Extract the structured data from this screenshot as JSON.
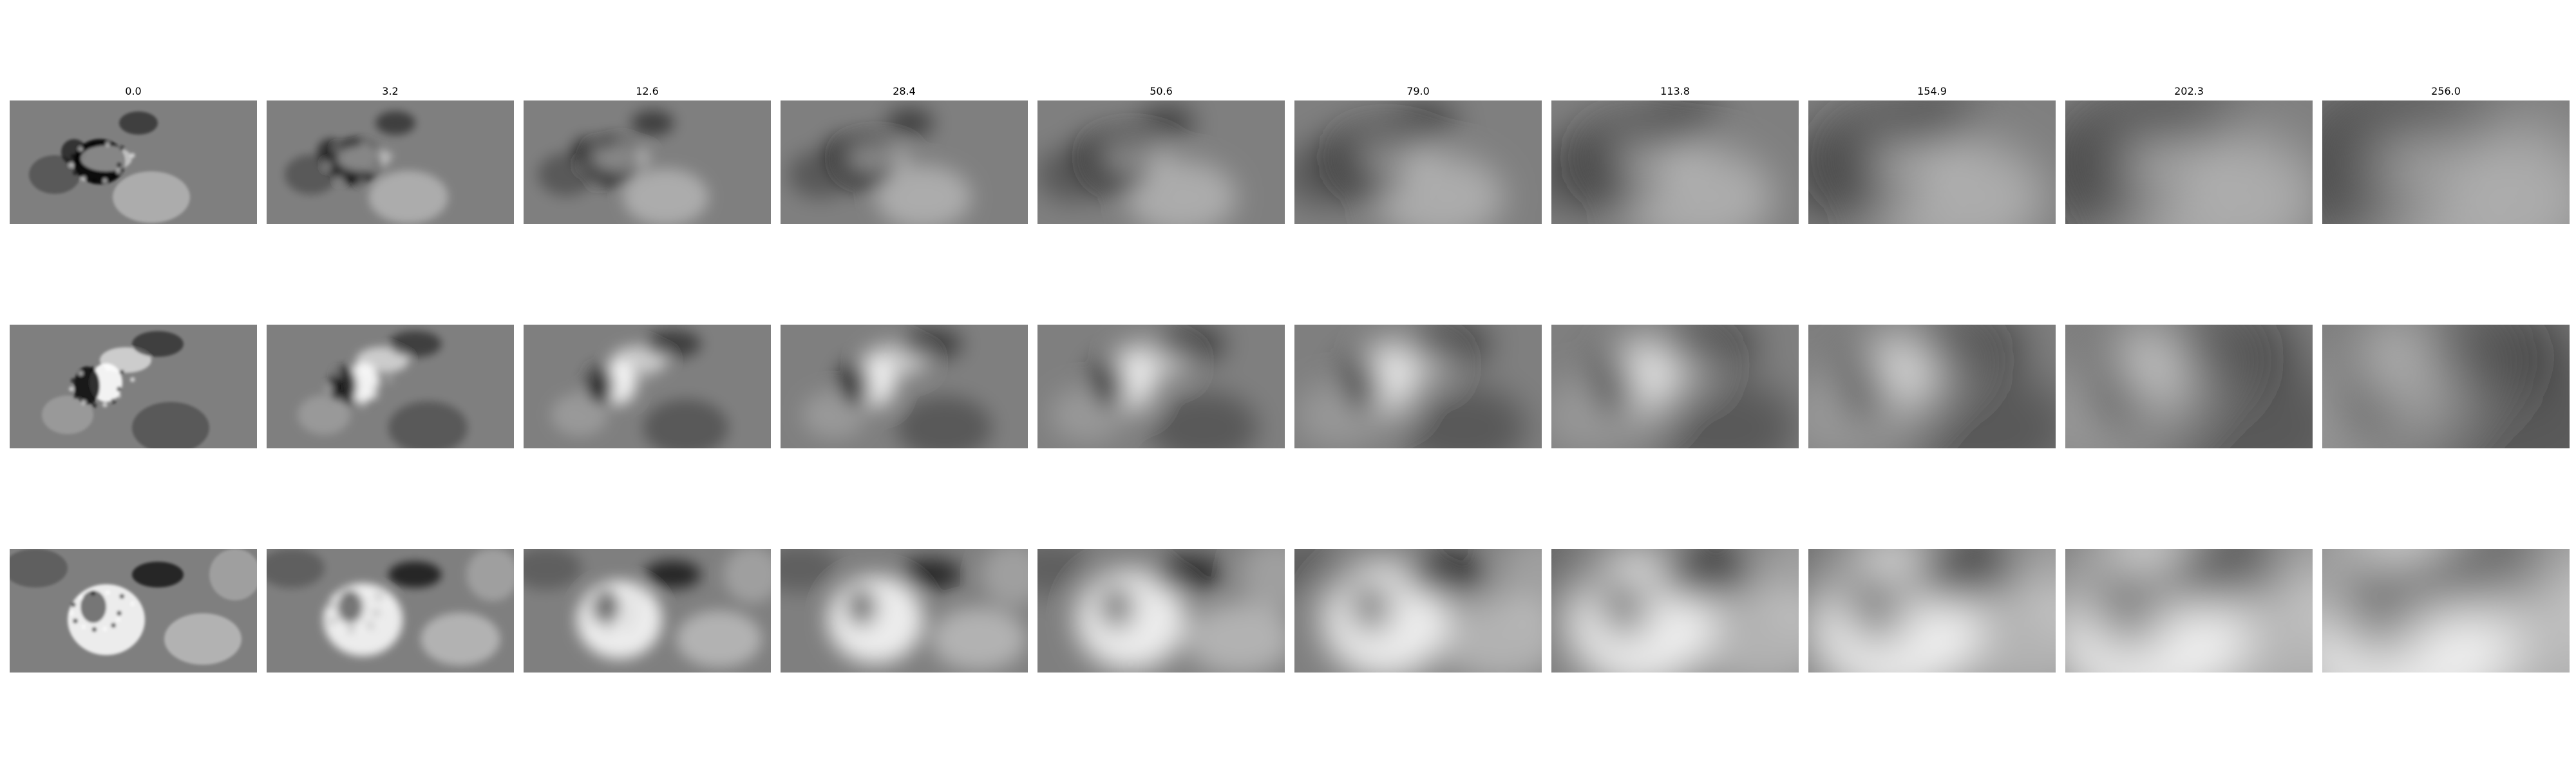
{
  "figure": {
    "columns": [
      {
        "title": "0.0",
        "sigma": 0.0
      },
      {
        "title": "3.2",
        "sigma": 3.2
      },
      {
        "title": "12.6",
        "sigma": 12.6
      },
      {
        "title": "28.4",
        "sigma": 28.4
      },
      {
        "title": "50.6",
        "sigma": 50.6
      },
      {
        "title": "79.0",
        "sigma": 79.0
      },
      {
        "title": "113.8",
        "sigma": 113.8
      },
      {
        "title": "154.9",
        "sigma": 154.9
      },
      {
        "title": "202.3",
        "sigma": 202.3
      },
      {
        "title": "256.0",
        "sigma": 256.0
      }
    ],
    "rows": [
      {
        "id": "row-1"
      },
      {
        "id": "row-2"
      },
      {
        "id": "row-3"
      }
    ],
    "colormap": "gray",
    "background_gray": "#7f7f7f",
    "dark": "#000000",
    "light": "#ffffff"
  },
  "colors": {
    "page_background": "#ffffff",
    "title_text": "#000000"
  }
}
